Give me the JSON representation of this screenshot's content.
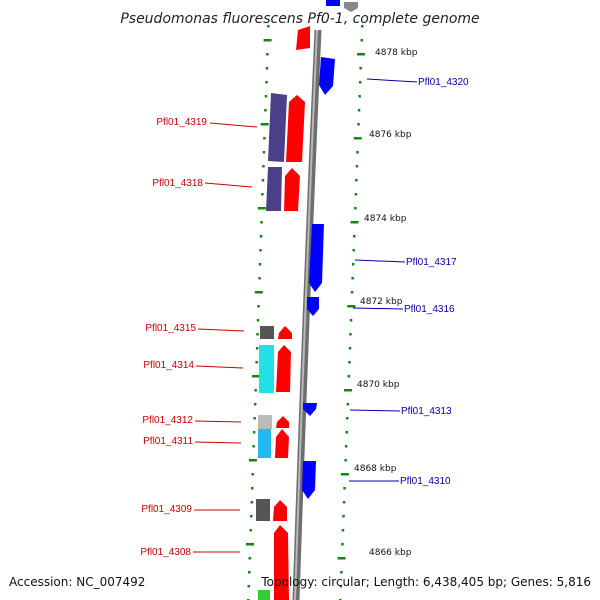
{
  "title": "Pseudomonas fluorescens Pf0-1, complete genome",
  "accession": "Accession: NC_007492",
  "topology": "Topology: circular; Length: 6,438,405 bp; Genes: 5,816",
  "colors": {
    "reverse_label": "#cc0000",
    "forward_label": "#0000aa",
    "reverse_arrow": "#ff0000",
    "forward_arrow": "#0000ff",
    "backbone": "#8a8a8a",
    "tick": "#118811"
  },
  "scale_labels": [
    "4878 kbp",
    "4876 kbp",
    "4874 kbp",
    "4872 kbp",
    "4870 kbp",
    "4868 kbp",
    "4866 kbp"
  ],
  "left_genes": [
    {
      "label": "Pfl01_4319",
      "strand": "reverse",
      "cog_color": "#4b3f8a"
    },
    {
      "label": "Pfl01_4318",
      "strand": "reverse",
      "cog_color": "#4b3f8a"
    },
    {
      "label": "Pfl01_4315",
      "strand": "reverse",
      "cog_color": "#555555"
    },
    {
      "label": "Pfl01_4314",
      "strand": "reverse",
      "cog_color": "#22e0e8"
    },
    {
      "label": "Pfl01_4312",
      "strand": "reverse",
      "cog_color": "#bbbbbb"
    },
    {
      "label": "Pfl01_4311",
      "strand": "reverse",
      "cog_color": "#22b8f0"
    },
    {
      "label": "Pfl01_4309",
      "strand": "reverse",
      "cog_color": "#555555"
    },
    {
      "label": "Pfl01_4308",
      "strand": "reverse",
      "cog_color": ""
    }
  ],
  "right_genes": [
    {
      "label": "Pfl01_4320",
      "strand": "forward"
    },
    {
      "label": "Pfl01_4317",
      "strand": "forward"
    },
    {
      "label": "Pfl01_4316",
      "strand": "forward"
    },
    {
      "label": "Pfl01_4313",
      "strand": "forward"
    },
    {
      "label": "Pfl01_4310",
      "strand": "forward"
    }
  ]
}
